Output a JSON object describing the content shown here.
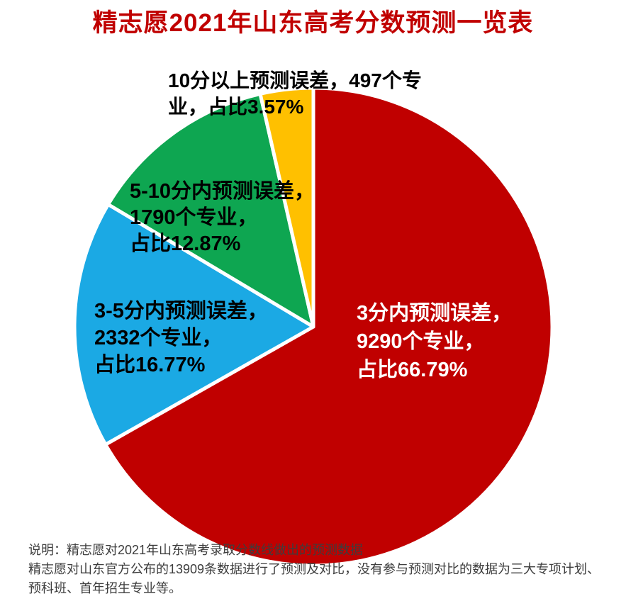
{
  "title": "精志愿2021年山东高考分数预测一览表",
  "colors": {
    "title_red": "#C00000",
    "background": "#FFFFFF",
    "footnote_gray": "#3D3D3D",
    "slice_separator": "#FFFFFF"
  },
  "chart_data": {
    "type": "pie",
    "title": "精志愿2021年山东高考分数预测一览表",
    "start_angle_deg_from_12_oclock": 0,
    "direction": "clockwise",
    "legend_position": "none",
    "total_records_compared": 13909,
    "slices": [
      {
        "key": "within-3",
        "name": "3分内预测误差",
        "majors": 9290,
        "percent": 66.79,
        "color": "#C00000",
        "label_color": "#FFFFFF",
        "label_lines": [
          "3分内预测误差，",
          "9290个专业，",
          "占比66.79%"
        ]
      },
      {
        "key": "3-to-5",
        "name": "3-5分内预测误差",
        "majors": 2332,
        "percent": 16.77,
        "color": "#1BA9E4",
        "label_color": "#000000",
        "label_lines": [
          "3-5分内预测误差，",
          "2332个专业，",
          "占比16.77%"
        ]
      },
      {
        "key": "5-to-10",
        "name": "5-10分内预测误差",
        "majors": 1790,
        "percent": 12.87,
        "color": "#0EA651",
        "label_color": "#000000",
        "label_lines": [
          "5-10分内预测误差，",
          "1790个专业，",
          "占比12.87%"
        ]
      },
      {
        "key": "above-10",
        "name": "10分以上预测误差",
        "majors": 497,
        "percent": 3.57,
        "color": "#FFC000",
        "label_color": "#000000",
        "label_lines": [
          "10分以上预测误差，497个专",
          "业，占比3.57%"
        ]
      }
    ]
  },
  "notes": {
    "lines": [
      "说明：精志愿对2021年山东高考录取分数线做出的预测数据",
      "精志愿对山东官方公布的13909条数据进行了预测及对比，没有参与预测对比的数据为三大专项计划、",
      "预科班、首年招生专业等。"
    ]
  }
}
